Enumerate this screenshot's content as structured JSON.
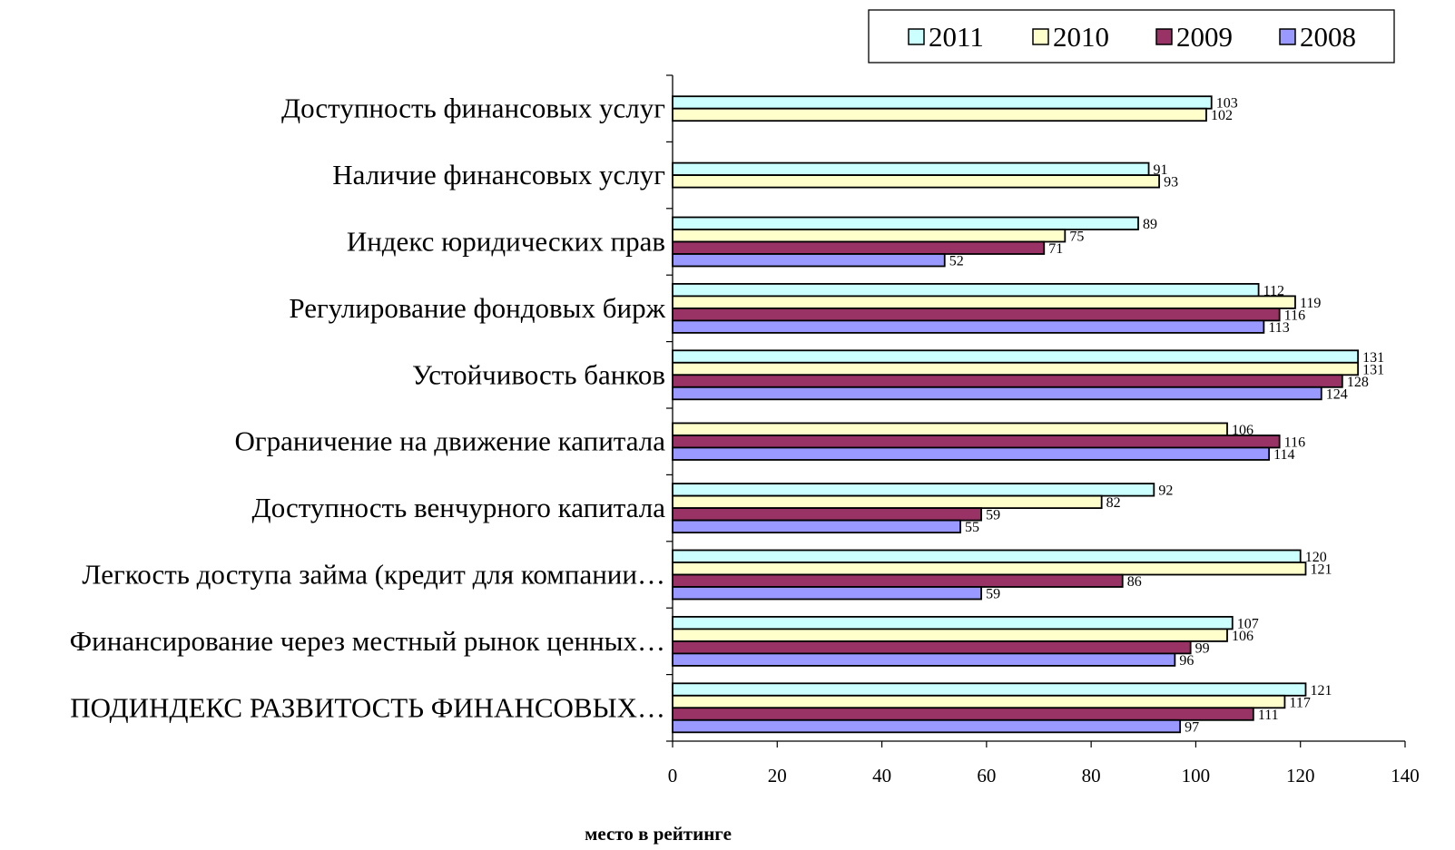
{
  "chart_data": {
    "type": "bar",
    "orientation": "horizontal",
    "title": "",
    "xlabel": "место в рейтинге",
    "ylabel": "",
    "xlim": [
      0,
      140
    ],
    "x_ticks": [
      0,
      20,
      40,
      60,
      80,
      100,
      120,
      140
    ],
    "grid": false,
    "legend_position": "top-right",
    "categories": [
      "Доступность финансовых услуг",
      "Наличие финансовых услуг",
      "Индекс юридических прав",
      "Регулирование фондовых бирж",
      "Устойчивость банков",
      "Ограничение на движение капитала",
      "Доступность венчурного капитала",
      "Легкость доступа займа (кредит для компании…",
      "Финансирование через местный   рынок ценных…",
      "ПОДИНДЕКС РАЗВИТОСТЬ ФИНАНСОВЫХ…"
    ],
    "series": [
      {
        "name": "2011",
        "color": "#ccffff",
        "values": [
          103,
          91,
          89,
          112,
          131,
          null,
          92,
          120,
          107,
          121
        ]
      },
      {
        "name": "2010",
        "color": "#ffffcc",
        "values": [
          102,
          93,
          75,
          119,
          131,
          106,
          82,
          121,
          106,
          117
        ]
      },
      {
        "name": "2009",
        "color": "#993366",
        "values": [
          null,
          null,
          71,
          116,
          128,
          116,
          59,
          86,
          99,
          111
        ]
      },
      {
        "name": "2008",
        "color": "#9999ff",
        "values": [
          null,
          null,
          52,
          113,
          124,
          114,
          55,
          59,
          96,
          97
        ]
      }
    ]
  }
}
